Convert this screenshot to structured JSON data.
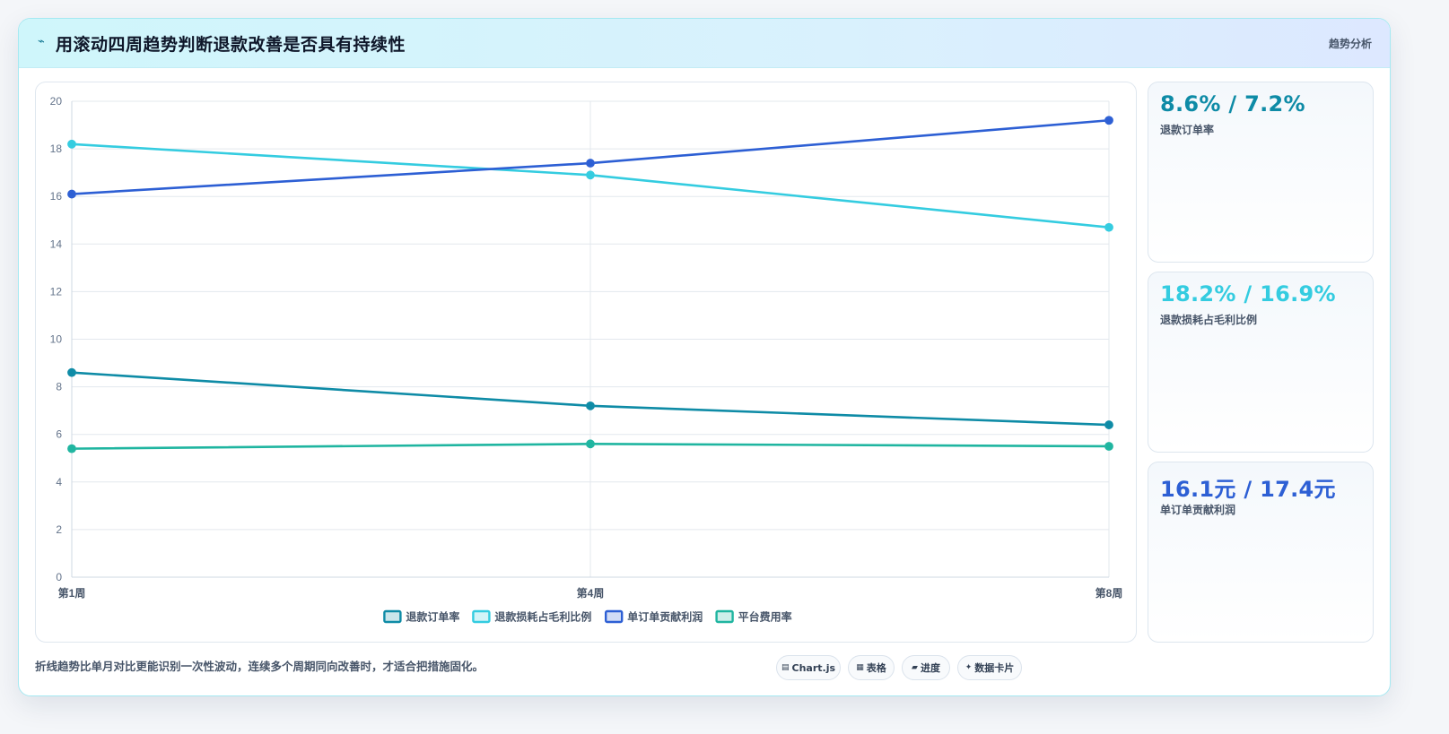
{
  "header": {
    "icon": "lightning-icon",
    "title": "用滚动四周趋势判断退款改善是否具有持续性",
    "tag": "趋势分析"
  },
  "chart_data": {
    "type": "line",
    "x": [
      "第1周",
      "第4周",
      "第8周"
    ],
    "ylim": [
      0,
      20
    ],
    "yticks": [
      0,
      2,
      4,
      6,
      8,
      10,
      12,
      14,
      16,
      18,
      20
    ],
    "grid": true,
    "legend_position": "bottom",
    "series": [
      {
        "name": "退款订单率",
        "color": "#0e8ba6",
        "values": [
          8.6,
          7.2,
          6.4
        ]
      },
      {
        "name": "退款损耗占毛利比例",
        "color": "#34cce0",
        "values": [
          18.2,
          16.9,
          14.7
        ]
      },
      {
        "name": "单订单贡献利润",
        "color": "#2d5fd4",
        "values": [
          16.1,
          17.4,
          19.2
        ]
      },
      {
        "name": "平台费用率",
        "color": "#1fb5a0",
        "values": [
          5.4,
          5.6,
          5.5
        ]
      }
    ]
  },
  "kpis": [
    {
      "value": "8.6% / 7.2%",
      "label": "退款订单率",
      "color": "#0e8ba6"
    },
    {
      "value": "18.2% / 16.9%",
      "label": "退款损耗占毛利比例",
      "color": "#34cce0"
    },
    {
      "value": "16.1元 / 17.4元",
      "label": "单订单贡献利润",
      "color": "#2d5fd4"
    }
  ],
  "footer": {
    "note": "折线趋势比单月对比更能识别一次性波动，连续多个周期同向改善时，才适合把措施固化。",
    "chips": [
      {
        "icon": "chart-icon",
        "glyph": "▤",
        "label": "Chart.js"
      },
      {
        "icon": "table-icon",
        "glyph": "▦",
        "label": "表格"
      },
      {
        "icon": "progress-icon",
        "glyph": "▰",
        "label": "进度"
      },
      {
        "icon": "card-icon",
        "glyph": "✦",
        "label": "数据卡片"
      }
    ]
  }
}
